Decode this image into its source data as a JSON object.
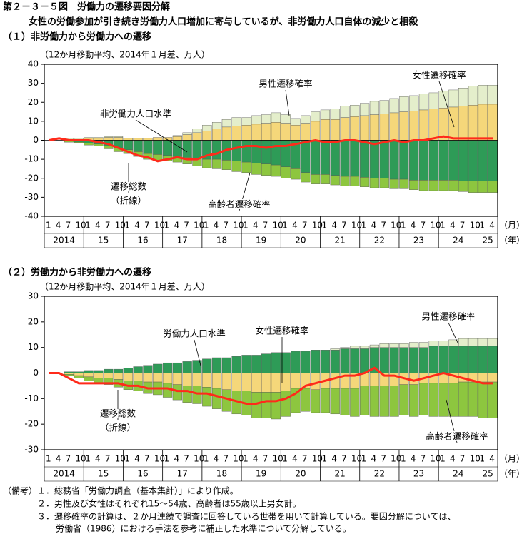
{
  "title": "第２－３－５図　労働力の遷移要因分解",
  "subtitle": "女性の労働参加が引き続き労働力人口増加に寄与しているが、非労働力人口自体の減少と相殺",
  "notes_label": "（備考）",
  "notes": [
    "１．総務省「労働力調査（基本集計）」により作成。",
    "２．男性及び女性はそれぞれ15～54歳、高齢者は55歳以上男女計。",
    "３．遷移確率の計算は、２か月連続で調査に回答している世帯を用いて計算している。要因分解については、",
    "労働省（1986）における手法を参考に補正した水準について分解している。"
  ],
  "chart_data": [
    {
      "type": "bar",
      "stacked": true,
      "title": "（１）非労働力から労働力への遷移",
      "subtitle": "（12か月移動平均、2014年１月差、万人）",
      "categories": [
        "1",
        "4",
        "7",
        "10",
        "1",
        "4",
        "7",
        "10",
        "1",
        "4",
        "7",
        "10",
        "1",
        "4",
        "7",
        "10",
        "1",
        "4",
        "7",
        "10",
        "1",
        "4",
        "7",
        "10",
        "1",
        "4",
        "7",
        "10",
        "1",
        "4",
        "7",
        "10",
        "1",
        "4",
        "7",
        "10",
        "1",
        "4",
        "7",
        "10",
        "1",
        "4",
        "7",
        "10",
        "1",
        "4"
      ],
      "years": [
        "2014",
        "15",
        "16",
        "17",
        "18",
        "19",
        "20",
        "21",
        "22",
        "23",
        "24",
        "25"
      ],
      "x_unit": "（月）",
      "year_unit": "（年）",
      "ylim": [
        -40,
        40
      ],
      "yticks": [
        -40,
        -30,
        -20,
        -10,
        0,
        10,
        20,
        30,
        40
      ],
      "series": [
        {
          "name": "非労働力人口水準",
          "color": "#2e9b57",
          "values": [
            0,
            0,
            -0.5,
            -1,
            -1.5,
            -2,
            -3,
            -4,
            -5,
            -6,
            -7,
            -7.5,
            -8,
            -8.5,
            -9,
            -9.5,
            -10,
            -10,
            -10.5,
            -11,
            -11.5,
            -12,
            -12.5,
            -13,
            -14,
            -15,
            -17,
            -18,
            -18,
            -18.5,
            -19,
            -19,
            -19.5,
            -20,
            -20,
            -20.5,
            -20.5,
            -21,
            -21,
            -21,
            -21,
            -21,
            -21.5,
            -21.5,
            -21.5,
            -21.5
          ]
        },
        {
          "name": "高齢者遷移確率",
          "color": "#8dc63f",
          "values": [
            0,
            0,
            -0.5,
            -0.5,
            -1,
            -1,
            -1.5,
            -2,
            -2,
            -2.5,
            -3,
            -3,
            -3,
            -3,
            -3.5,
            -4,
            -4.5,
            -5,
            -5,
            -5.5,
            -5.5,
            -6,
            -6,
            -6,
            -6,
            -5.5,
            -5,
            -5,
            -5,
            -5,
            -5,
            -5,
            -5,
            -5,
            -5,
            -5,
            -5,
            -5,
            -5.5,
            -5.5,
            -5.5,
            -5.5,
            -5.5,
            -6,
            -6,
            -6
          ]
        },
        {
          "name": "女性遷移確率",
          "color": "#f5d77a",
          "values": [
            0,
            0,
            0.5,
            0.5,
            1,
            1,
            1.5,
            1.5,
            1,
            1,
            1,
            1.5,
            1.5,
            2,
            3,
            4,
            5,
            6,
            7,
            7.5,
            8,
            8.5,
            9,
            9.5,
            9,
            8,
            9,
            10,
            11,
            11,
            12,
            12.5,
            13,
            13.5,
            14,
            14.5,
            15,
            15.5,
            16,
            16.5,
            17,
            17.5,
            18,
            18.5,
            19,
            19
          ]
        },
        {
          "name": "男性遷移確率",
          "color": "#e4eecb",
          "values": [
            0,
            0,
            0.5,
            0.5,
            0.5,
            0.5,
            0.5,
            0.5,
            0,
            0,
            0,
            0,
            0,
            0.5,
            1,
            2,
            3,
            3.5,
            4,
            4.5,
            4,
            4.5,
            4.5,
            5,
            4.5,
            3.5,
            4,
            5,
            5,
            5.5,
            6,
            6,
            6.5,
            7,
            7,
            7.5,
            8,
            8,
            8.5,
            8.5,
            9,
            9,
            9.5,
            10,
            10,
            10
          ]
        },
        {
          "name": "遷移総数",
          "name_note": "（折線）",
          "type": "line",
          "color": "#ff2a1a",
          "values": [
            0,
            1,
            0,
            0,
            0,
            -1,
            -2,
            -4,
            -6,
            -8,
            -9,
            -11,
            -10,
            -9,
            -10,
            -10,
            -8,
            -7,
            -5,
            -4,
            -3,
            -3,
            -4,
            -3,
            -3,
            -2,
            -1,
            0,
            -1,
            -1,
            0,
            0,
            -1,
            -2,
            -1,
            0,
            -1,
            0,
            0,
            1,
            2,
            1,
            1,
            1,
            1,
            1
          ]
        }
      ]
    },
    {
      "type": "bar",
      "stacked": true,
      "title": "（２）労働力から非労働力への遷移",
      "subtitle": "（12か月移動平均、2014年１月差、万人）",
      "categories": [
        "1",
        "4",
        "7",
        "10",
        "1",
        "4",
        "7",
        "10",
        "1",
        "4",
        "7",
        "10",
        "1",
        "4",
        "7",
        "10",
        "1",
        "4",
        "7",
        "10",
        "1",
        "4",
        "7",
        "10",
        "1",
        "4",
        "7",
        "10",
        "1",
        "4",
        "7",
        "10",
        "1",
        "4",
        "7",
        "10",
        "1",
        "4",
        "7",
        "10",
        "1",
        "4",
        "7",
        "10",
        "1",
        "4"
      ],
      "years": [
        "2014",
        "15",
        "16",
        "17",
        "18",
        "19",
        "20",
        "21",
        "22",
        "23",
        "24",
        "25"
      ],
      "x_unit": "（月）",
      "year_unit": "（年）",
      "ylim": [
        -30,
        30
      ],
      "yticks": [
        -30,
        -20,
        -10,
        0,
        10,
        20,
        30
      ],
      "series": [
        {
          "name": "労働力人口水準",
          "color": "#2e9b57",
          "values": [
            0,
            0,
            0.5,
            0.5,
            1,
            1,
            1.5,
            1.5,
            2,
            2.5,
            3,
            3.5,
            4,
            4,
            4.5,
            5,
            5.5,
            6,
            6,
            6.5,
            7,
            7,
            7.5,
            8,
            8,
            8.5,
            8.5,
            9,
            9,
            9,
            9.5,
            9.5,
            9.5,
            10,
            10,
            10,
            10,
            10,
            10,
            10.5,
            10.5,
            10.5,
            10.5,
            10.5,
            10.5,
            10.5
          ]
        },
        {
          "name": "男性遷移確率",
          "color": "#e4eecb",
          "values": [
            0,
            0,
            0,
            0,
            0,
            0,
            0,
            0,
            0,
            0,
            0,
            0,
            0,
            0,
            0,
            0,
            0,
            0,
            0,
            0,
            0,
            0,
            0,
            0,
            0,
            0,
            0,
            0,
            0,
            0.5,
            0.5,
            1,
            1,
            1,
            1.5,
            1.5,
            1.5,
            2,
            2,
            2,
            2,
            2.5,
            3,
            3,
            3,
            3
          ]
        },
        {
          "name": "女性遷移確率",
          "color": "#f5d77a",
          "values": [
            0,
            0,
            -0.5,
            -1,
            -1.5,
            -2,
            -2,
            -2.5,
            -3,
            -3,
            -3.5,
            -3.5,
            -4,
            -4.5,
            -5,
            -5,
            -5.5,
            -6,
            -6.5,
            -7,
            -7,
            -7.5,
            -7.5,
            -7.5,
            -7,
            -6,
            -6,
            -6.5,
            -6,
            -6,
            -6,
            -6,
            -5,
            -5,
            -5,
            -5,
            -4.5,
            -4.5,
            -4,
            -4,
            -4,
            -4,
            -3.5,
            -3.5,
            -3.5,
            -3.5
          ]
        },
        {
          "name": "高齢者遷移確率",
          "color": "#8dc63f",
          "values": [
            0,
            0,
            -0.5,
            -1,
            -1.5,
            -2,
            -2.5,
            -3,
            -3.5,
            -4,
            -4.5,
            -5,
            -5.5,
            -6,
            -6.5,
            -7,
            -7.5,
            -8,
            -8.5,
            -9,
            -9.5,
            -10,
            -10,
            -10.5,
            -10,
            -9.5,
            -9,
            -9,
            -9.5,
            -10,
            -10.5,
            -11,
            -11.5,
            -12,
            -12,
            -12,
            -12,
            -12.5,
            -12.5,
            -13,
            -13,
            -13,
            -13.5,
            -13.5,
            -14,
            -14
          ]
        },
        {
          "name": "遷移総数",
          "name_note": "（折線）",
          "type": "line",
          "color": "#ff2a1a",
          "values": [
            0,
            0,
            -2,
            -4,
            -4,
            -4,
            -4,
            -4,
            -5,
            -5,
            -6,
            -6,
            -6,
            -7,
            -7,
            -8,
            -8,
            -9,
            -10,
            -11,
            -12,
            -12,
            -11,
            -11,
            -10,
            -8,
            -5,
            -4,
            -3,
            -2,
            -1,
            -1,
            0,
            2,
            -1,
            -1,
            -2,
            -3,
            -2,
            -1,
            0,
            -1,
            -2,
            -3,
            -4,
            -4
          ]
        }
      ]
    }
  ]
}
